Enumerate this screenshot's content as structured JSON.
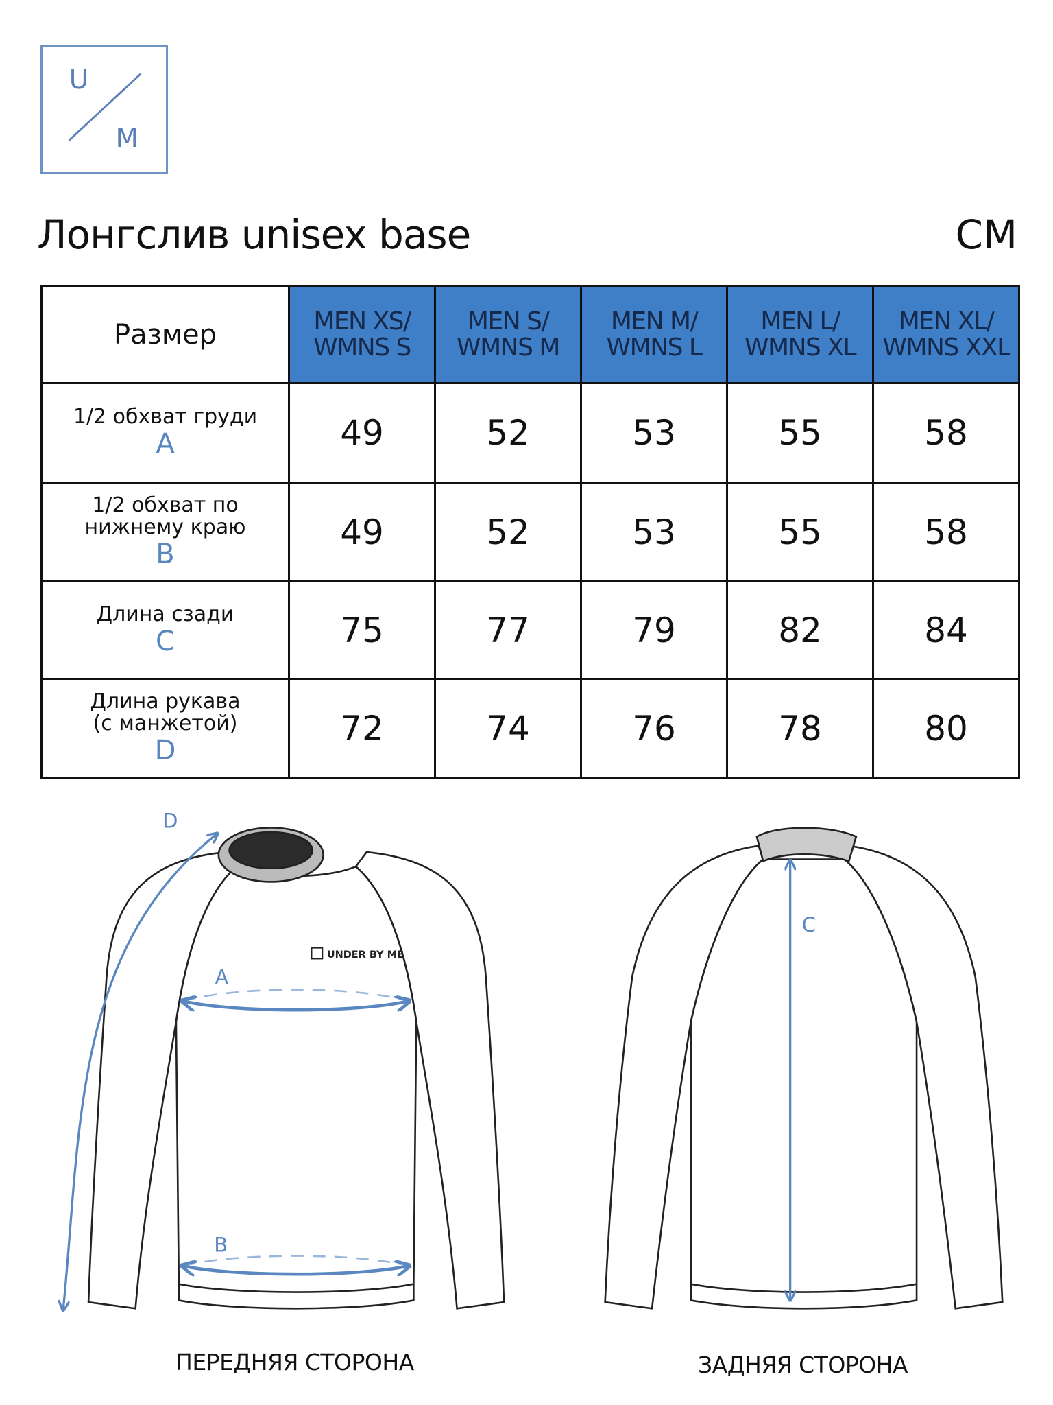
{
  "logo": {
    "top_letter": "U",
    "bottom_letter": "M",
    "color": "#6d93c4"
  },
  "title": "Лонгслив unisex base",
  "unit": "CM",
  "table": {
    "header_label": "Размер",
    "header_color": "#3f7fc8",
    "columns": [
      [
        "MEN XS/",
        "WMNS S"
      ],
      [
        "MEN S/",
        "WMNS M"
      ],
      [
        "MEN M/",
        "WMNS L"
      ],
      [
        "MEN L/",
        "WMNS XL"
      ],
      [
        "MEN XL/",
        "WMNS XXL"
      ]
    ],
    "rows": [
      {
        "label": [
          "1/2 обхват груди"
        ],
        "letter": "A",
        "values": [
          "49",
          "52",
          "53",
          "55",
          "58"
        ]
      },
      {
        "label": [
          "1/2 обхват по",
          "нижнему краю"
        ],
        "letter": "B",
        "values": [
          "49",
          "52",
          "53",
          "55",
          "58"
        ]
      },
      {
        "label": [
          "Длина сзади"
        ],
        "letter": "C",
        "values": [
          "75",
          "77",
          "79",
          "82",
          "84"
        ]
      },
      {
        "label": [
          "Длина рукава",
          "(с манжетой)"
        ],
        "letter": "D",
        "values": [
          "72",
          "74",
          "76",
          "78",
          "80"
        ]
      }
    ]
  },
  "diagram": {
    "front_caption": "ПЕРЕДНЯЯ СТОРОНА",
    "back_caption": "ЗАДНЯЯ СТОРОНА",
    "brand_print": "UNDER BY ME",
    "labels": {
      "a": "A",
      "b": "B",
      "c": "C",
      "d": "D"
    },
    "measure_color": "#5b87c0"
  }
}
